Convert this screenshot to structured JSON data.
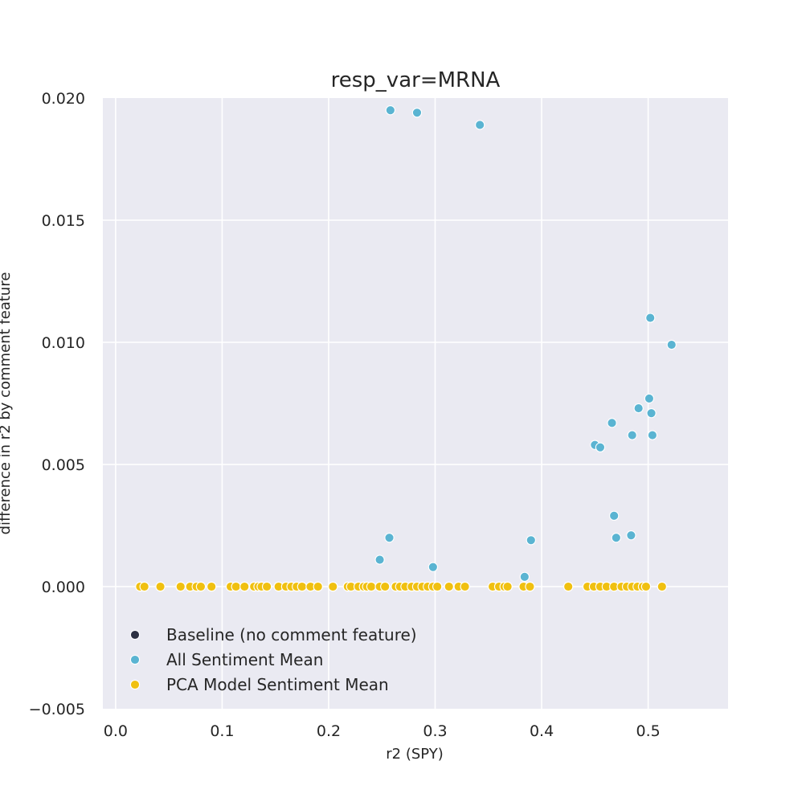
{
  "chart_data": {
    "type": "scatter",
    "title": "resp_var=MRNA",
    "xlabel": "r2 (SPY)",
    "ylabel": "difference in r2 by comment feature",
    "xlim": [
      -0.012,
      0.575
    ],
    "ylim": [
      -0.005,
      0.02
    ],
    "xticks": [
      0.0,
      0.1,
      0.2,
      0.3,
      0.4,
      0.5
    ],
    "xtick_labels": [
      "0.0",
      "0.1",
      "0.2",
      "0.3",
      "0.4",
      "0.5"
    ],
    "yticks": [
      -0.005,
      0.0,
      0.005,
      0.01,
      0.015,
      0.02
    ],
    "ytick_labels": [
      "−0.005",
      "0.000",
      "0.005",
      "0.010",
      "0.015",
      "0.020"
    ],
    "grid": true,
    "legend_position": "lower-left",
    "series": [
      {
        "name": "Baseline (no comment feature)",
        "color": "#2d3142",
        "x": [
          0.023,
          0.027,
          0.042,
          0.061,
          0.07,
          0.076,
          0.08,
          0.09,
          0.108,
          0.113,
          0.121,
          0.13,
          0.134,
          0.137,
          0.142,
          0.153,
          0.16,
          0.165,
          0.17,
          0.175,
          0.183,
          0.19,
          0.204,
          0.218,
          0.221,
          0.228,
          0.233,
          0.236,
          0.24,
          0.248,
          0.253,
          0.263,
          0.267,
          0.272,
          0.278,
          0.283,
          0.288,
          0.293,
          0.298,
          0.302,
          0.313,
          0.322,
          0.328,
          0.354,
          0.36,
          0.365,
          0.368,
          0.383,
          0.389,
          0.425,
          0.443,
          0.449,
          0.455,
          0.461,
          0.468,
          0.475,
          0.48,
          0.485,
          0.49,
          0.495,
          0.498,
          0.513
        ],
        "y": [
          0,
          0,
          0,
          0,
          0,
          0,
          0,
          0,
          0,
          0,
          0,
          0,
          0,
          0,
          0,
          0,
          0,
          0,
          0,
          0,
          0,
          0,
          0,
          0,
          0,
          0,
          0,
          0,
          0,
          0,
          0,
          0,
          0,
          0,
          0,
          0,
          0,
          0,
          0,
          0,
          0,
          0,
          0,
          0,
          0,
          0,
          0,
          0,
          0,
          0,
          0,
          0,
          0,
          0,
          0,
          0,
          0,
          0,
          0,
          0,
          0,
          0
        ]
      },
      {
        "name": "All Sentiment Mean",
        "color": "#5ab4d2",
        "x": [
          0.023,
          0.027,
          0.042,
          0.061,
          0.07,
          0.076,
          0.08,
          0.09,
          0.108,
          0.113,
          0.121,
          0.13,
          0.134,
          0.137,
          0.142,
          0.153,
          0.16,
          0.165,
          0.17,
          0.175,
          0.183,
          0.19,
          0.204,
          0.218,
          0.221,
          0.228,
          0.233,
          0.236,
          0.24,
          0.253,
          0.263,
          0.267,
          0.272,
          0.278,
          0.288,
          0.293,
          0.302,
          0.313,
          0.322,
          0.328,
          0.354,
          0.36,
          0.365,
          0.368,
          0.389,
          0.425,
          0.443,
          0.461,
          0.475,
          0.48,
          0.495,
          0.498,
          0.513,
          0.258,
          0.283,
          0.342,
          0.502,
          0.522,
          0.501,
          0.491,
          0.503,
          0.466,
          0.45,
          0.455,
          0.485,
          0.504,
          0.468,
          0.257,
          0.39,
          0.47,
          0.484,
          0.248,
          0.298,
          0.384
        ],
        "y": [
          0,
          0,
          0,
          0,
          0,
          0,
          0,
          0,
          0,
          0,
          0,
          0,
          0,
          0,
          0,
          0,
          0,
          0,
          0,
          0,
          0,
          0,
          0,
          0,
          0,
          0,
          0,
          0,
          0,
          0,
          0,
          0,
          0,
          0,
          0,
          0,
          0,
          0,
          0,
          0,
          0,
          0,
          0,
          0,
          0,
          0,
          0,
          0,
          0,
          0,
          0,
          0,
          0,
          0.0195,
          0.0194,
          0.0189,
          0.011,
          0.0099,
          0.0077,
          0.0073,
          0.0071,
          0.0067,
          0.0058,
          0.0057,
          0.0062,
          0.0062,
          0.0029,
          0.002,
          0.0019,
          0.002,
          0.0021,
          0.0011,
          0.0008,
          0.0004
        ]
      },
      {
        "name": "PCA Model Sentiment Mean",
        "color": "#f0c010",
        "x": [
          0.023,
          0.027,
          0.042,
          0.061,
          0.07,
          0.076,
          0.08,
          0.09,
          0.108,
          0.113,
          0.121,
          0.13,
          0.134,
          0.137,
          0.142,
          0.153,
          0.16,
          0.165,
          0.17,
          0.175,
          0.183,
          0.19,
          0.204,
          0.218,
          0.221,
          0.228,
          0.233,
          0.236,
          0.24,
          0.248,
          0.253,
          0.263,
          0.267,
          0.272,
          0.278,
          0.283,
          0.288,
          0.293,
          0.298,
          0.302,
          0.313,
          0.322,
          0.328,
          0.354,
          0.36,
          0.365,
          0.368,
          0.383,
          0.389,
          0.425,
          0.443,
          0.449,
          0.455,
          0.461,
          0.468,
          0.475,
          0.48,
          0.485,
          0.49,
          0.495,
          0.498,
          0.513
        ],
        "y": [
          0,
          0,
          0,
          0,
          0,
          0,
          0,
          0,
          0,
          0,
          0,
          0,
          0,
          0,
          0,
          0,
          0,
          0,
          0,
          0,
          0,
          0,
          0,
          0,
          0,
          0,
          0,
          0,
          0,
          0,
          0,
          0,
          0,
          0,
          0,
          0,
          0,
          0,
          0,
          0,
          0,
          0,
          0,
          0,
          0,
          0,
          0,
          0,
          0,
          0,
          0,
          0,
          0,
          0,
          0,
          0,
          0,
          0,
          0,
          0,
          0,
          0
        ]
      }
    ],
    "plot_background": "#eaeaf2"
  }
}
